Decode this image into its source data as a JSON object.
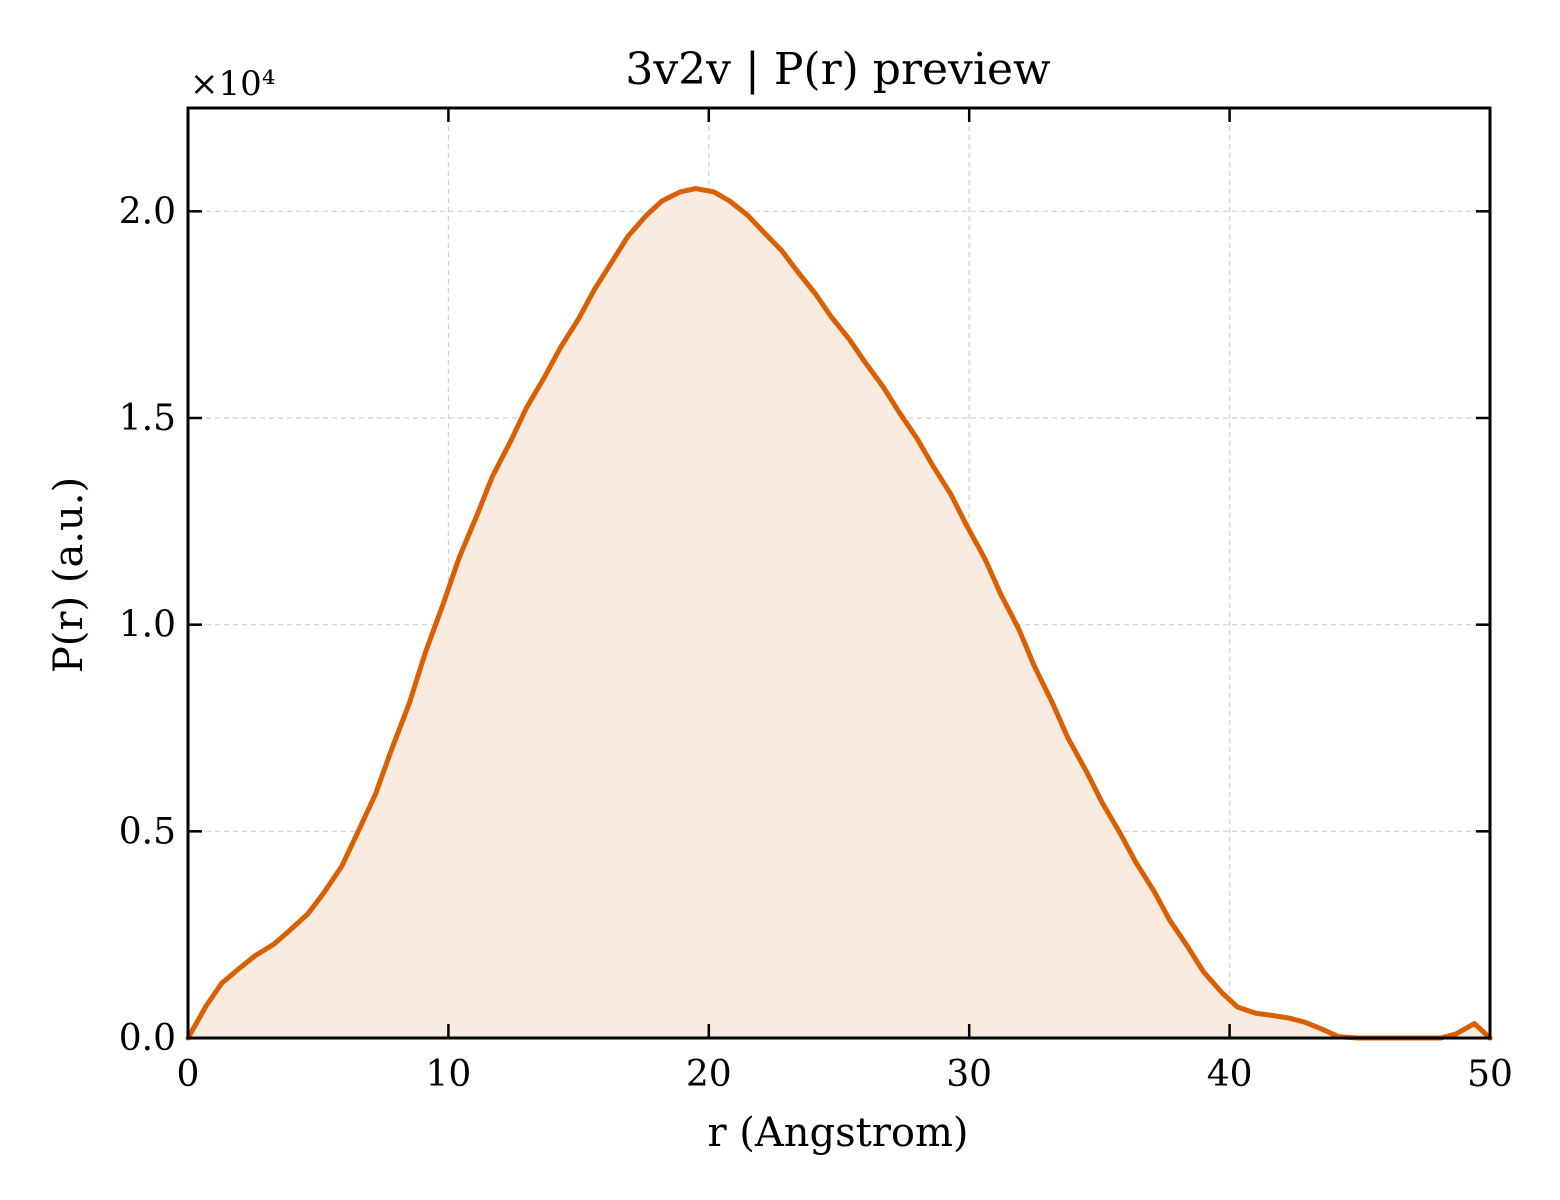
{
  "chart_data": {
    "type": "area",
    "title": "3v2v | P(r) preview",
    "xlabel": "r (Angstrom)",
    "ylabel": "P(r) (a.u.)",
    "y_multiplier_label": "×10⁴",
    "y_multiplier": 10000,
    "xlim": [
      0,
      50
    ],
    "ylim": [
      0,
      2.25
    ],
    "x_ticks": [
      0,
      10,
      20,
      30,
      40,
      50
    ],
    "x_tick_labels": [
      "0",
      "10",
      "20",
      "30",
      "40",
      "50"
    ],
    "y_ticks": [
      0,
      0.5,
      1.0,
      1.5,
      2.0
    ],
    "y_tick_labels": [
      "0.0",
      "0.5",
      "1.0",
      "1.5",
      "2.0"
    ],
    "grid": true,
    "legend": "none",
    "line_color": "#d95f02",
    "fill_color": "#f9ebe0",
    "series": [
      {
        "x": [
          0,
          0.7,
          1.3,
          2.0,
          2.6,
          3.3,
          3.9,
          4.6,
          5.2,
          5.9,
          6.5,
          7.2,
          7.8,
          8.5,
          9.1,
          9.8,
          10.4,
          11.1,
          11.7,
          12.4,
          13.0,
          13.7,
          14.3,
          15.0,
          15.6,
          16.3,
          16.9,
          17.6,
          18.2,
          18.9,
          19.5,
          20.2,
          20.8,
          21.5,
          22.1,
          22.8,
          23.4,
          24.1,
          24.7,
          25.4,
          26.0,
          26.7,
          27.3,
          28.0,
          28.6,
          29.3,
          29.9,
          30.6,
          31.2,
          31.9,
          32.5,
          33.2,
          33.8,
          34.5,
          35.1,
          35.8,
          36.4,
          37.1,
          37.7,
          38.4,
          39.0,
          39.7,
          40.3,
          41.0,
          41.6,
          42.3,
          42.9,
          43.6,
          44.2,
          44.9,
          45.5,
          46.2,
          46.8,
          47.5,
          48.1,
          48.7,
          49.4,
          50.0
        ],
        "y": [
          0.0,
          0.078,
          0.133,
          0.17,
          0.2,
          0.227,
          0.26,
          0.3,
          0.35,
          0.415,
          0.495,
          0.59,
          0.695,
          0.81,
          0.93,
          1.05,
          1.16,
          1.265,
          1.36,
          1.445,
          1.525,
          1.6,
          1.67,
          1.74,
          1.81,
          1.88,
          1.94,
          1.99,
          2.025,
          2.047,
          2.055,
          2.047,
          2.025,
          1.99,
          1.95,
          1.905,
          1.855,
          1.8,
          1.745,
          1.69,
          1.635,
          1.575,
          1.515,
          1.45,
          1.385,
          1.315,
          1.24,
          1.16,
          1.075,
          0.99,
          0.9,
          0.81,
          0.725,
          0.645,
          0.57,
          0.495,
          0.425,
          0.355,
          0.285,
          0.22,
          0.16,
          0.11,
          0.075,
          0.06,
          0.055,
          0.048,
          0.038,
          0.02,
          0.003,
          0.0,
          0.0,
          0.0,
          0.0,
          0.0,
          0.0,
          0.01,
          0.035,
          0.0
        ]
      }
    ]
  }
}
